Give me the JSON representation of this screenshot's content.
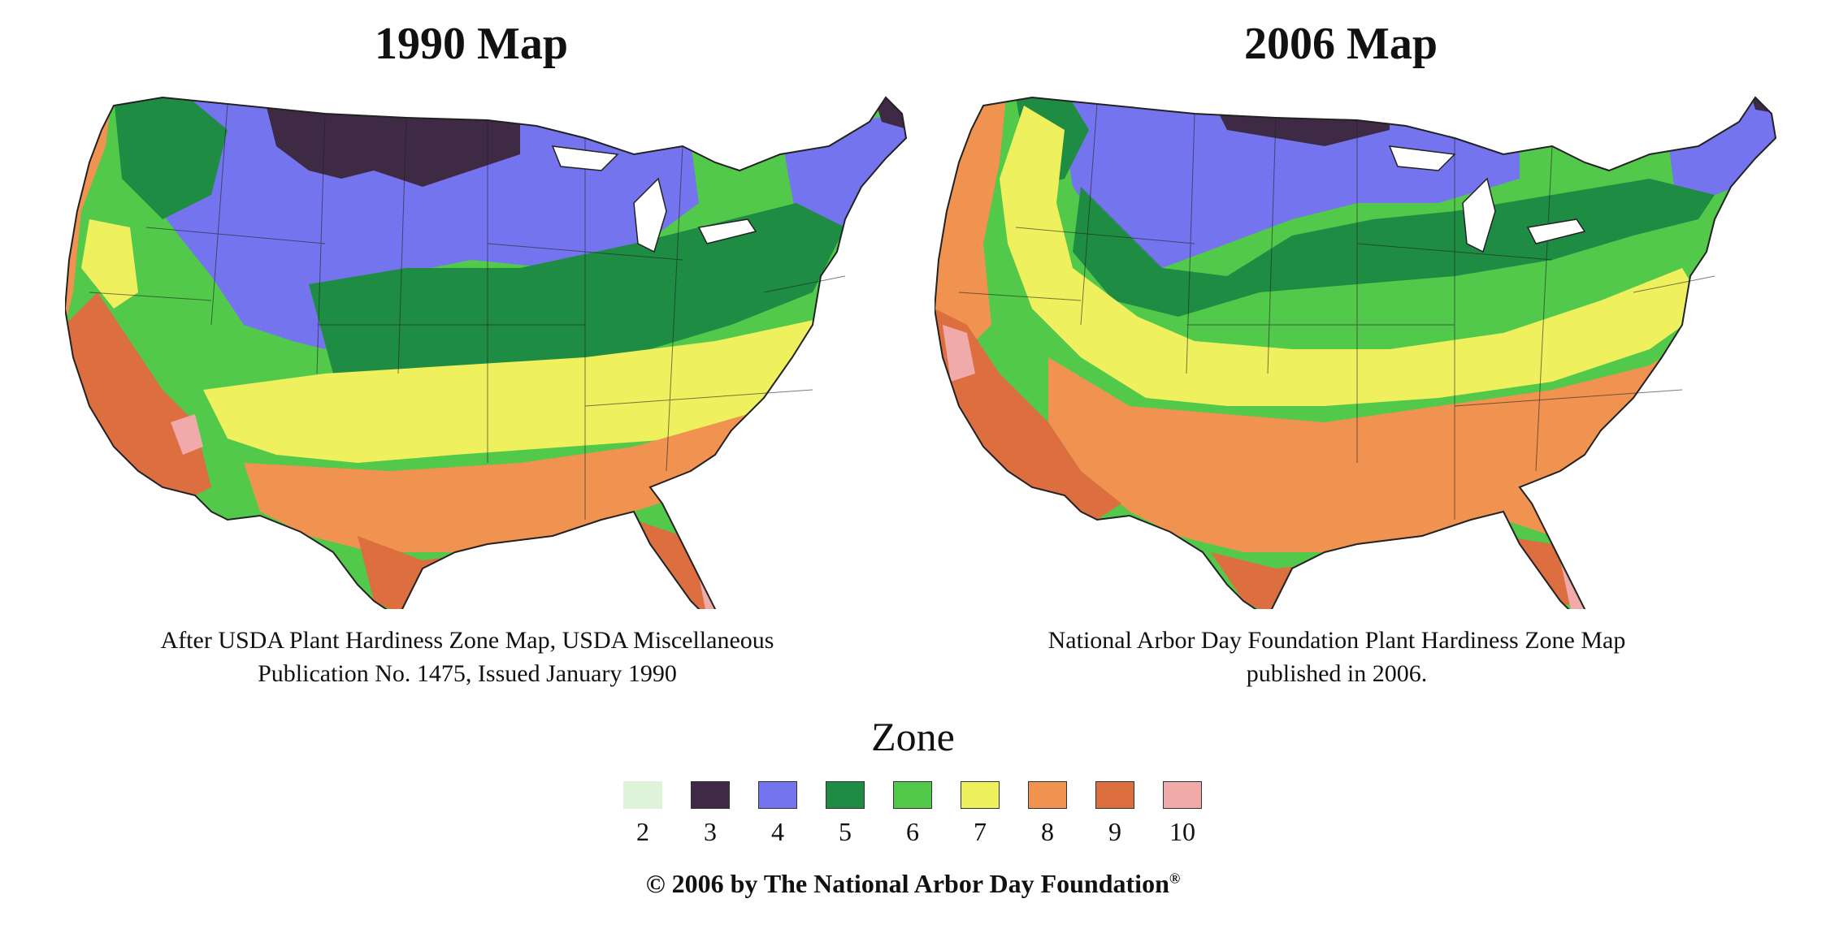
{
  "maps": [
    {
      "title": "1990 Map",
      "caption_line1": "After USDA Plant Hardiness Zone Map, USDA Miscellaneous",
      "caption_line2": "Publication No. 1475, Issued January 1990"
    },
    {
      "title": "2006 Map",
      "caption_line1": "National Arbor Day Foundation Plant Hardiness Zone Map",
      "caption_line2": "published in 2006."
    }
  ],
  "legend": {
    "title": "Zone",
    "zones": [
      {
        "label": "2",
        "color": "#dff2da"
      },
      {
        "label": "3",
        "color": "#3e2a45"
      },
      {
        "label": "4",
        "color": "#7474ee"
      },
      {
        "label": "5",
        "color": "#1f8c43"
      },
      {
        "label": "6",
        "color": "#52c94a"
      },
      {
        "label": "7",
        "color": "#eef05e"
      },
      {
        "label": "8",
        "color": "#f09250"
      },
      {
        "label": "9",
        "color": "#dd6e40"
      },
      {
        "label": "10",
        "color": "#f0aaaa"
      }
    ]
  },
  "copyright": {
    "text": "© 2006 by The National Arbor Day Foundation",
    "mark": "®"
  }
}
